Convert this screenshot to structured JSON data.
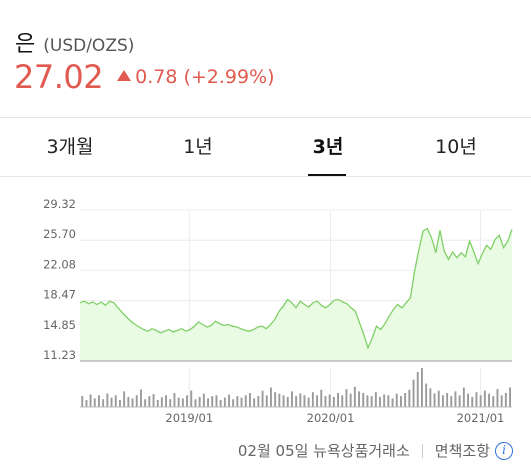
{
  "header": {
    "name": "은",
    "code": "(USD/OZS)",
    "price": "27.02",
    "change": "0.78 (+2.99%)",
    "accent_color": "#e05a4f"
  },
  "tabs": [
    {
      "label": "3개월"
    },
    {
      "label": "1년"
    },
    {
      "label": "3년",
      "active": true
    },
    {
      "label": "10년"
    }
  ],
  "chart_data": {
    "type": "area",
    "title": "",
    "y_ticks": [
      "29.32",
      "25.70",
      "22.08",
      "18.47",
      "14.85",
      "11.23"
    ],
    "ylim": [
      11.23,
      29.32
    ],
    "x_ticks": [
      "2019/01",
      "2020/01",
      "2021/01"
    ],
    "series": [
      {
        "values": [
          18.2,
          18.4,
          18.1,
          18.3,
          18.0,
          18.3,
          17.9,
          18.4,
          18.2,
          17.6,
          17.0,
          16.5,
          16.0,
          15.6,
          15.3,
          15.0,
          14.8,
          15.1,
          14.9,
          14.6,
          14.8,
          15.0,
          14.7,
          14.9,
          15.1,
          14.8,
          15.0,
          15.4,
          15.9,
          15.6,
          15.3,
          15.5,
          16.0,
          15.7,
          15.5,
          15.6,
          15.4,
          15.3,
          15.1,
          14.9,
          14.8,
          15.0,
          15.3,
          15.4,
          15.1,
          15.6,
          16.2,
          17.2,
          17.8,
          18.6,
          18.2,
          17.6,
          18.4,
          18.0,
          17.7,
          18.2,
          18.4,
          17.9,
          17.6,
          18.0,
          18.5,
          18.6,
          18.3,
          18.1,
          17.6,
          17.2,
          15.8,
          14.4,
          12.8,
          14.0,
          15.4,
          15.0,
          15.7,
          16.6,
          17.4,
          18.0,
          17.6,
          18.2,
          18.8,
          22.0,
          24.5,
          26.8,
          27.1,
          26.0,
          24.2,
          26.9,
          24.4,
          23.4,
          24.3,
          23.6,
          24.2,
          23.7,
          25.6,
          24.3,
          22.9,
          24.1,
          25.1,
          24.6,
          25.8,
          26.3,
          24.8,
          25.6,
          27.0
        ]
      }
    ],
    "volume": [
      0.28,
      0.18,
      0.32,
      0.22,
      0.3,
      0.2,
      0.35,
      0.24,
      0.3,
      0.18,
      0.4,
      0.26,
      0.22,
      0.3,
      0.45,
      0.2,
      0.28,
      0.33,
      0.18,
      0.25,
      0.3,
      0.2,
      0.36,
      0.24,
      0.22,
      0.3,
      0.42,
      0.2,
      0.26,
      0.34,
      0.22,
      0.28,
      0.3,
      0.18,
      0.24,
      0.32,
      0.2,
      0.28,
      0.24,
      0.3,
      0.36,
      0.22,
      0.28,
      0.42,
      0.3,
      0.5,
      0.38,
      0.34,
      0.3,
      0.26,
      0.4,
      0.28,
      0.35,
      0.3,
      0.24,
      0.38,
      0.3,
      0.44,
      0.28,
      0.32,
      0.26,
      0.36,
      0.3,
      0.46,
      0.34,
      0.52,
      0.4,
      0.36,
      0.3,
      0.28,
      0.38,
      0.26,
      0.32,
      0.3,
      0.22,
      0.34,
      0.28,
      0.36,
      0.44,
      0.7,
      0.9,
      1.0,
      0.6,
      0.48,
      0.35,
      0.42,
      0.3,
      0.36,
      0.28,
      0.4,
      0.3,
      0.5,
      0.34,
      0.26,
      0.38,
      0.3,
      0.42,
      0.34,
      0.28,
      0.46,
      0.3,
      0.36,
      0.5
    ]
  },
  "footer": {
    "date_source": "02월 05일 뉴욕상품거래소",
    "disclaimer": "면책조항",
    "info_icon": "info-icon"
  }
}
